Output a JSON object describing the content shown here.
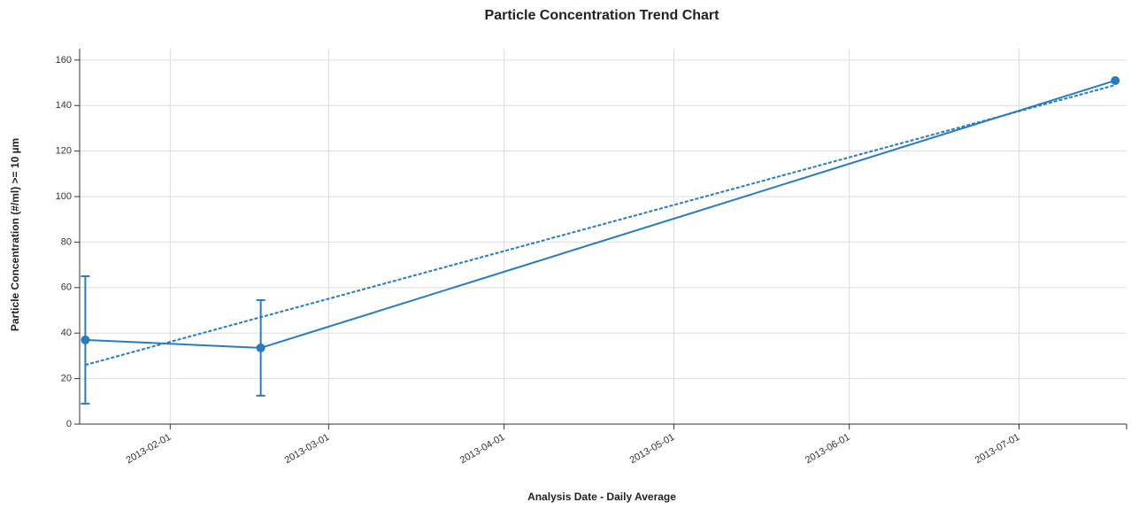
{
  "chart_data": {
    "type": "line",
    "title": "Particle Concentration Trend Chart",
    "x_label": "Analysis Date - Daily Average",
    "y_label": "Particle Concentration (#/ml) >= 10 µm",
    "x": [
      "2013-01-17",
      "2013-02-17",
      "2013-07-18"
    ],
    "series": [
      {
        "color": "#2b7bba",
        "values": [
          37,
          33.5,
          151
        ],
        "errors": [
          28,
          21,
          null
        ],
        "style": "solid",
        "markers": true
      },
      {
        "color": "#2b7bba",
        "values": [
          26,
          47,
          149
        ],
        "style": "dashed",
        "markers": false
      }
    ],
    "xlim": [
      "2013-01-16",
      "2013-07-20"
    ],
    "xticks": [
      "2013-02-01",
      "2013-03-01",
      "2013-04-01",
      "2013-05-01",
      "2013-06-01",
      "2013-07-01"
    ],
    "ylim": [
      0,
      165
    ],
    "yticks": [
      0,
      20,
      40,
      60,
      80,
      100,
      120,
      140,
      160
    ],
    "grid": true
  }
}
